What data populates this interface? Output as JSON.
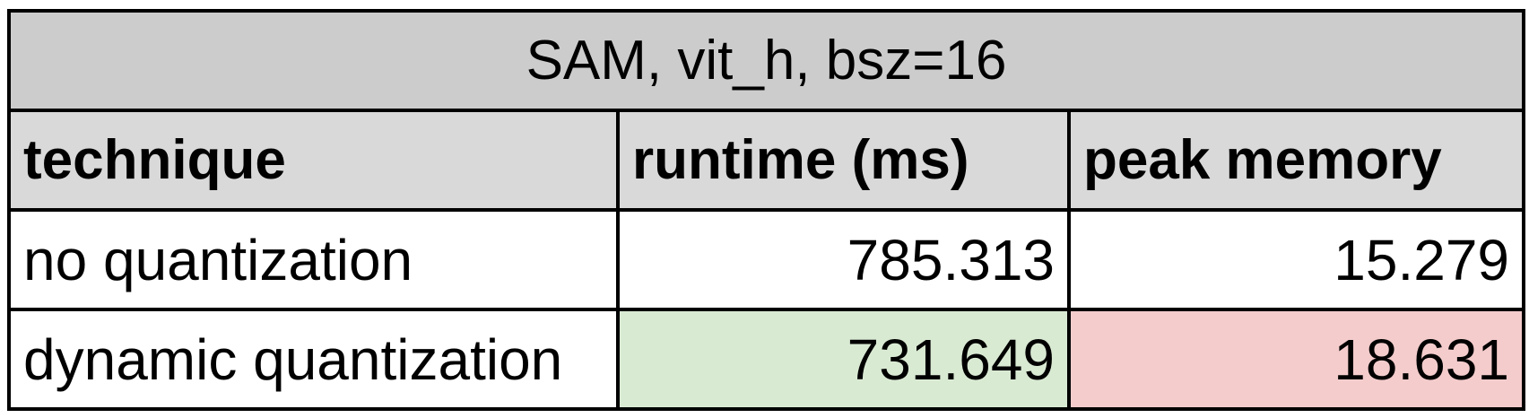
{
  "chart_data": {
    "type": "table",
    "title": "SAM, vit_h, bsz=16",
    "columns": [
      "technique",
      "runtime (ms)",
      "peak memory"
    ],
    "rows": [
      {
        "technique": "no quantization",
        "runtime": "785.313",
        "peak_memory": "15.279"
      },
      {
        "technique": "dynamic quantization",
        "runtime": "731.649",
        "peak_memory": "18.631"
      }
    ],
    "highlights": [
      {
        "row": 1,
        "column": 1,
        "color": "#d9ead3",
        "meaning": "better"
      },
      {
        "row": 1,
        "column": 2,
        "color": "#f4cccc",
        "meaning": "worse"
      }
    ]
  },
  "colors": {
    "title_bg": "#cccccc",
    "header_bg": "#d9d9d9",
    "cell_bg": "#ffffff",
    "border": "#000000"
  }
}
